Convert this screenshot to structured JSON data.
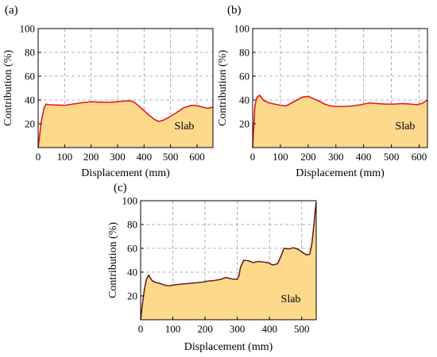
{
  "chart_data": [
    {
      "type": "area",
      "panel_label": "(a)",
      "xlabel": "Displacement (mm)",
      "ylabel": "Contribution (%)",
      "xlim": [
        0,
        660
      ],
      "ylim": [
        0,
        100
      ],
      "xticks": [
        0,
        100,
        200,
        300,
        400,
        500,
        600
      ],
      "yticks": [
        20,
        40,
        60,
        80,
        100
      ],
      "grid": true,
      "fill_color": "#fdd98c",
      "line_color": "#e8141c",
      "annotation": "Slab",
      "series": [
        {
          "x": [
            0,
            12,
            22,
            30,
            40,
            60,
            80,
            100,
            130,
            160,
            200,
            230,
            260,
            290,
            320,
            345,
            360,
            380,
            400,
            420,
            440,
            455,
            470,
            490,
            520,
            550,
            580,
            600,
            620,
            640,
            660
          ],
          "y": [
            0,
            22,
            33,
            36.5,
            36,
            35.8,
            35.7,
            35.5,
            36.5,
            37.5,
            38.5,
            38.2,
            38,
            38.3,
            39,
            39.3,
            38.5,
            35,
            31,
            27,
            23.5,
            22,
            22.8,
            25,
            29,
            33.5,
            35.5,
            35.2,
            34,
            33,
            34
          ]
        }
      ]
    },
    {
      "type": "area",
      "panel_label": "(b)",
      "xlabel": "Displacement (mm)",
      "ylabel": "Contribution (%)",
      "xlim": [
        0,
        630
      ],
      "ylim": [
        0,
        100
      ],
      "xticks": [
        0,
        100,
        200,
        300,
        400,
        500,
        600
      ],
      "yticks": [
        20,
        40,
        60,
        80,
        100
      ],
      "grid": true,
      "fill_color": "#fdd98c",
      "line_color": "#e8141c",
      "annotation": "Slab",
      "series": [
        {
          "x": [
            0,
            8,
            15,
            25,
            40,
            60,
            80,
            100,
            120,
            140,
            160,
            180,
            200,
            220,
            240,
            260,
            280,
            300,
            330,
            360,
            390,
            420,
            450,
            480,
            510,
            540,
            570,
            590,
            610,
            630
          ],
          "y": [
            0,
            35,
            42,
            44,
            39.5,
            37.5,
            36.5,
            35.5,
            35,
            37.5,
            40,
            42.5,
            43,
            41,
            39,
            36.5,
            35,
            34.5,
            34.5,
            35,
            36,
            37.5,
            37,
            36.5,
            36.5,
            37,
            36.5,
            36,
            37,
            40
          ]
        }
      ]
    },
    {
      "type": "area",
      "panel_label": "(c)",
      "xlabel": "Displacement (mm)",
      "ylabel": "Contribution (%)",
      "xlim": [
        0,
        545
      ],
      "ylim": [
        0,
        100
      ],
      "xticks": [
        0,
        100,
        200,
        300,
        400,
        500
      ],
      "yticks": [
        20,
        40,
        60,
        80,
        100
      ],
      "grid": true,
      "fill_color": "#fdd98c",
      "line_color": "#6b1f1f",
      "annotation": "Slab",
      "series": [
        {
          "x": [
            0,
            5,
            12,
            18,
            25,
            35,
            45,
            60,
            75,
            90,
            110,
            130,
            150,
            170,
            190,
            210,
            230,
            250,
            265,
            280,
            290,
            300,
            305,
            310,
            320,
            335,
            350,
            365,
            380,
            395,
            410,
            425,
            435,
            445,
            460,
            475,
            490,
            505,
            515,
            525,
            532,
            538,
            542,
            545
          ],
          "y": [
            0,
            12,
            26,
            34,
            37.5,
            33,
            31.5,
            30.5,
            29,
            28.5,
            29.5,
            30,
            30.5,
            31,
            31.5,
            32.5,
            33,
            34,
            35.5,
            34.5,
            34,
            34,
            37,
            44,
            50,
            49.5,
            48,
            49,
            48.5,
            48,
            46,
            47,
            53,
            60,
            59.5,
            60.5,
            59,
            56,
            54.5,
            55,
            65,
            80,
            92,
            98
          ]
        }
      ]
    }
  ]
}
